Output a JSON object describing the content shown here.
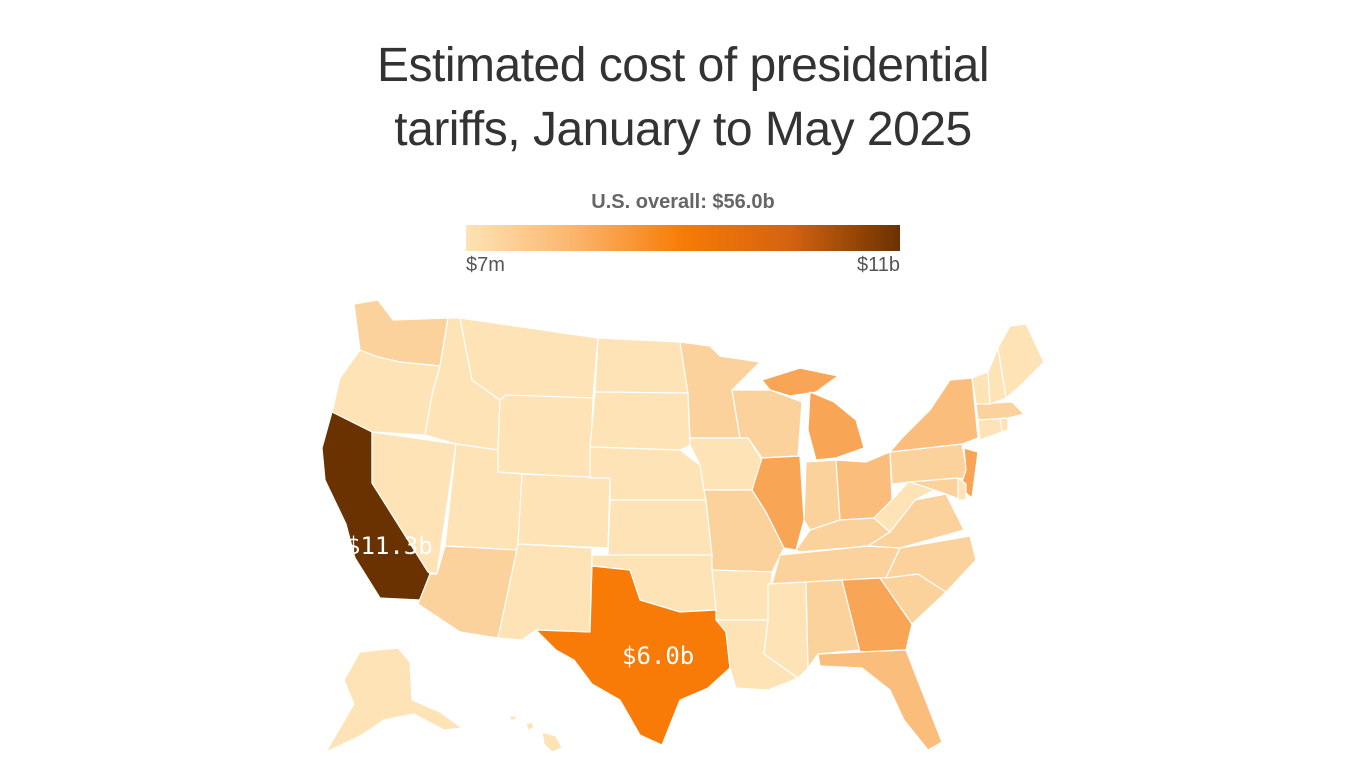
{
  "title": {
    "line1": "Estimated cost of presidential",
    "line2": "tariffs, January to May 2025"
  },
  "legend": {
    "title": "U.S. overall: $56.0b",
    "min_label": "$7m",
    "max_label": "$11b",
    "colors": [
      "#fde3b6",
      "#fbb56c",
      "#f77b06",
      "#d46210",
      "#6a3200"
    ]
  },
  "colors": {
    "lightest": "#fde3b6",
    "light": "#fbd29c",
    "medium_light": "#fbbd7c",
    "medium": "#f8a556",
    "bright": "#f77b06",
    "darkest": "#6a3200"
  },
  "labels": {
    "california": "$11.3b",
    "texas": "$6.0b"
  },
  "states": {
    "WA": "light",
    "OR": "lightest",
    "CA": "darkest",
    "NV": "lightest",
    "ID": "lightest",
    "MT": "lightest",
    "WY": "lightest",
    "UT": "lightest",
    "AZ": "light",
    "CO": "lightest",
    "NM": "lightest",
    "ND": "lightest",
    "SD": "lightest",
    "NE": "lightest",
    "KS": "lightest",
    "OK": "lightest",
    "TX": "bright",
    "MN": "light",
    "IA": "lightest",
    "MO": "light",
    "AR": "lightest",
    "LA": "lightest",
    "WI": "light",
    "IL": "medium",
    "MI": "medium",
    "IN": "light",
    "OH": "medium_light",
    "KY": "light",
    "TN": "light",
    "MS": "lightest",
    "AL": "light",
    "GA": "medium",
    "FL": "medium_light",
    "SC": "light",
    "NC": "light",
    "VA": "light",
    "WV": "lightest",
    "PA": "light",
    "NY": "medium_light",
    "NJ": "medium",
    "MD": "light",
    "DE": "lightest",
    "CT": "lightest",
    "RI": "lightest",
    "MA": "light",
    "VT": "lightest",
    "NH": "lightest",
    "ME": "lightest",
    "AK": "lightest",
    "HI": "lightest"
  }
}
